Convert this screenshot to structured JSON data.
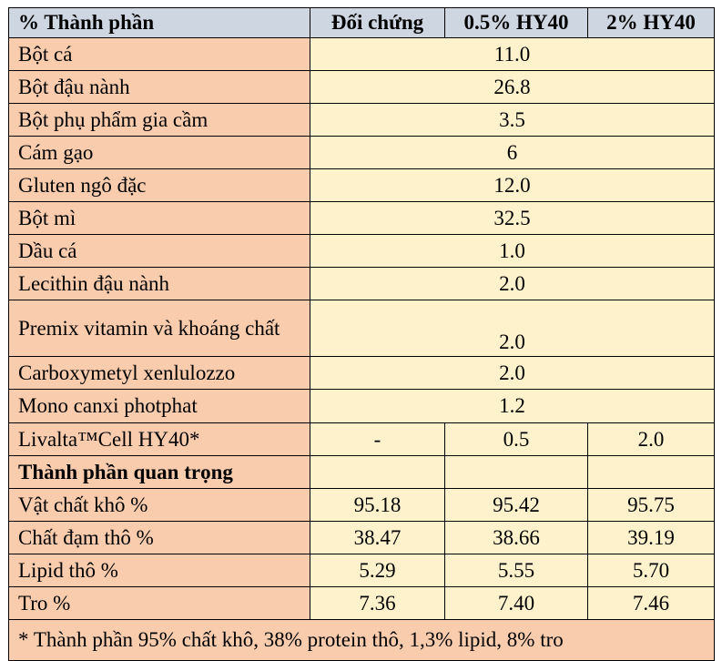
{
  "headers": [
    "% Thành phần",
    "Đối chứng",
    "0.5% HY40",
    "2% HY40"
  ],
  "common_rows": [
    {
      "label": "Bột cá",
      "value": "11.0"
    },
    {
      "label": "Bột đậu nành",
      "value": "26.8"
    },
    {
      "label": "Bột phụ phẩm gia cầm",
      "value": "3.5"
    },
    {
      "label": "Cám gạo",
      "value": "6"
    },
    {
      "label": "Gluten ngô đặc",
      "value": "12.0"
    },
    {
      "label": "Bột mì",
      "value": "32.5"
    },
    {
      "label": "Dầu cá",
      "value": "1.0"
    },
    {
      "label": "Lecithin đậu nành",
      "value": "2.0"
    },
    {
      "label": "Premix vitamin và khoáng chất",
      "value": "2.0"
    },
    {
      "label": "Carboxymetyl xenlulozzo",
      "value": "2.0"
    },
    {
      "label": "Mono canxi photphat",
      "value": "1.2"
    }
  ],
  "livalta_row": {
    "label": "Livalta™Cell HY40*",
    "values": [
      "-",
      "0.5",
      "2.0"
    ]
  },
  "section_title": "Thành phần quan trọng",
  "composition_rows": [
    {
      "label": "Vật chất khô %",
      "values": [
        "95.18",
        "95.42",
        "95.75"
      ]
    },
    {
      "label": "Chất đạm thô %",
      "values": [
        "38.47",
        "38.66",
        "39.19"
      ]
    },
    {
      "label": "Lipid thô %",
      "values": [
        "5.29",
        "5.55",
        "5.70"
      ]
    },
    {
      "label": "Tro %",
      "values": [
        "7.36",
        "7.40",
        "7.46"
      ]
    }
  ],
  "footnote": "* Thành phần 95% chất khô, 38% protein thô, 1,3% lipid, 8% tro",
  "colors": {
    "header_bg": "#ced6e2",
    "label_bg": "#f9ccad",
    "value_bg": "#fef2cc",
    "border": "#000000"
  }
}
